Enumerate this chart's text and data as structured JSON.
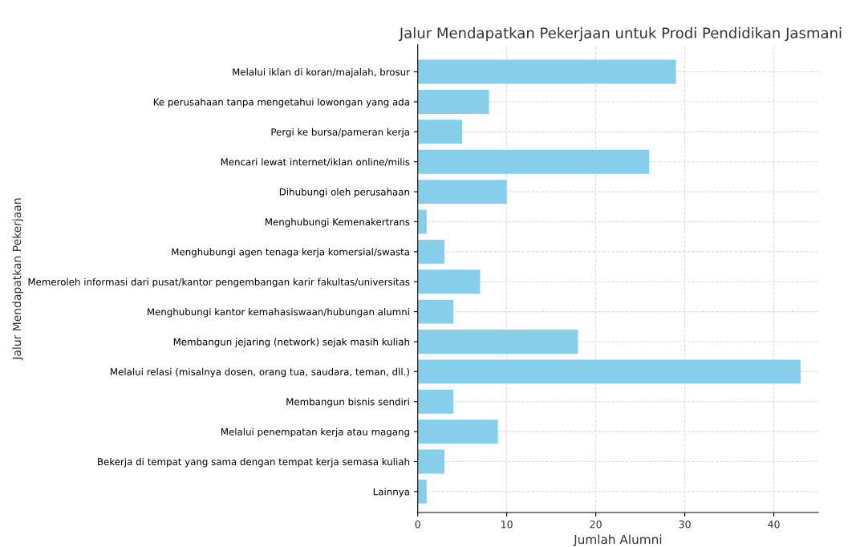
{
  "chart_data": {
    "type": "bar",
    "orientation": "horizontal",
    "title": "Jalur Mendapatkan Pekerjaan untuk Prodi Pendidikan Jasmani",
    "xlabel": "Jumlah Alumni",
    "ylabel": "Jalur Mendapatkan Pekerjaan",
    "categories": [
      "Melalui iklan di koran/majalah, brosur",
      "Ke perusahaan tanpa mengetahui lowongan yang ada",
      "Pergi ke bursa/pameran kerja",
      "Mencari lewat internet/iklan online/milis",
      "Dihubungi oleh perusahaan",
      "Menghubungi Kemenakertrans",
      "Menghubungi agen tenaga kerja komersial/swasta",
      "Memeroleh informasi dari pusat/kantor pengembangan karir fakultas/universitas",
      "Menghubungi kantor kemahasiswaan/hubungan alumni",
      "Membangun jejaring (network) sejak masih kuliah",
      "Melalui relasi (misalnya dosen, orang tua, saudara, teman, dll.)",
      "Membangun bisnis sendiri",
      "Melalui penempatan kerja atau magang",
      "Bekerja di tempat yang sama dengan tempat kerja semasa kuliah",
      "Lainnya"
    ],
    "values": [
      29,
      8,
      5,
      26,
      10,
      1,
      3,
      7,
      4,
      18,
      43,
      4,
      9,
      3,
      1
    ],
    "color": "#87ceeb",
    "xlim": [
      0,
      45
    ],
    "xticks": [
      0,
      10,
      20,
      30,
      40
    ],
    "grid": true
  }
}
